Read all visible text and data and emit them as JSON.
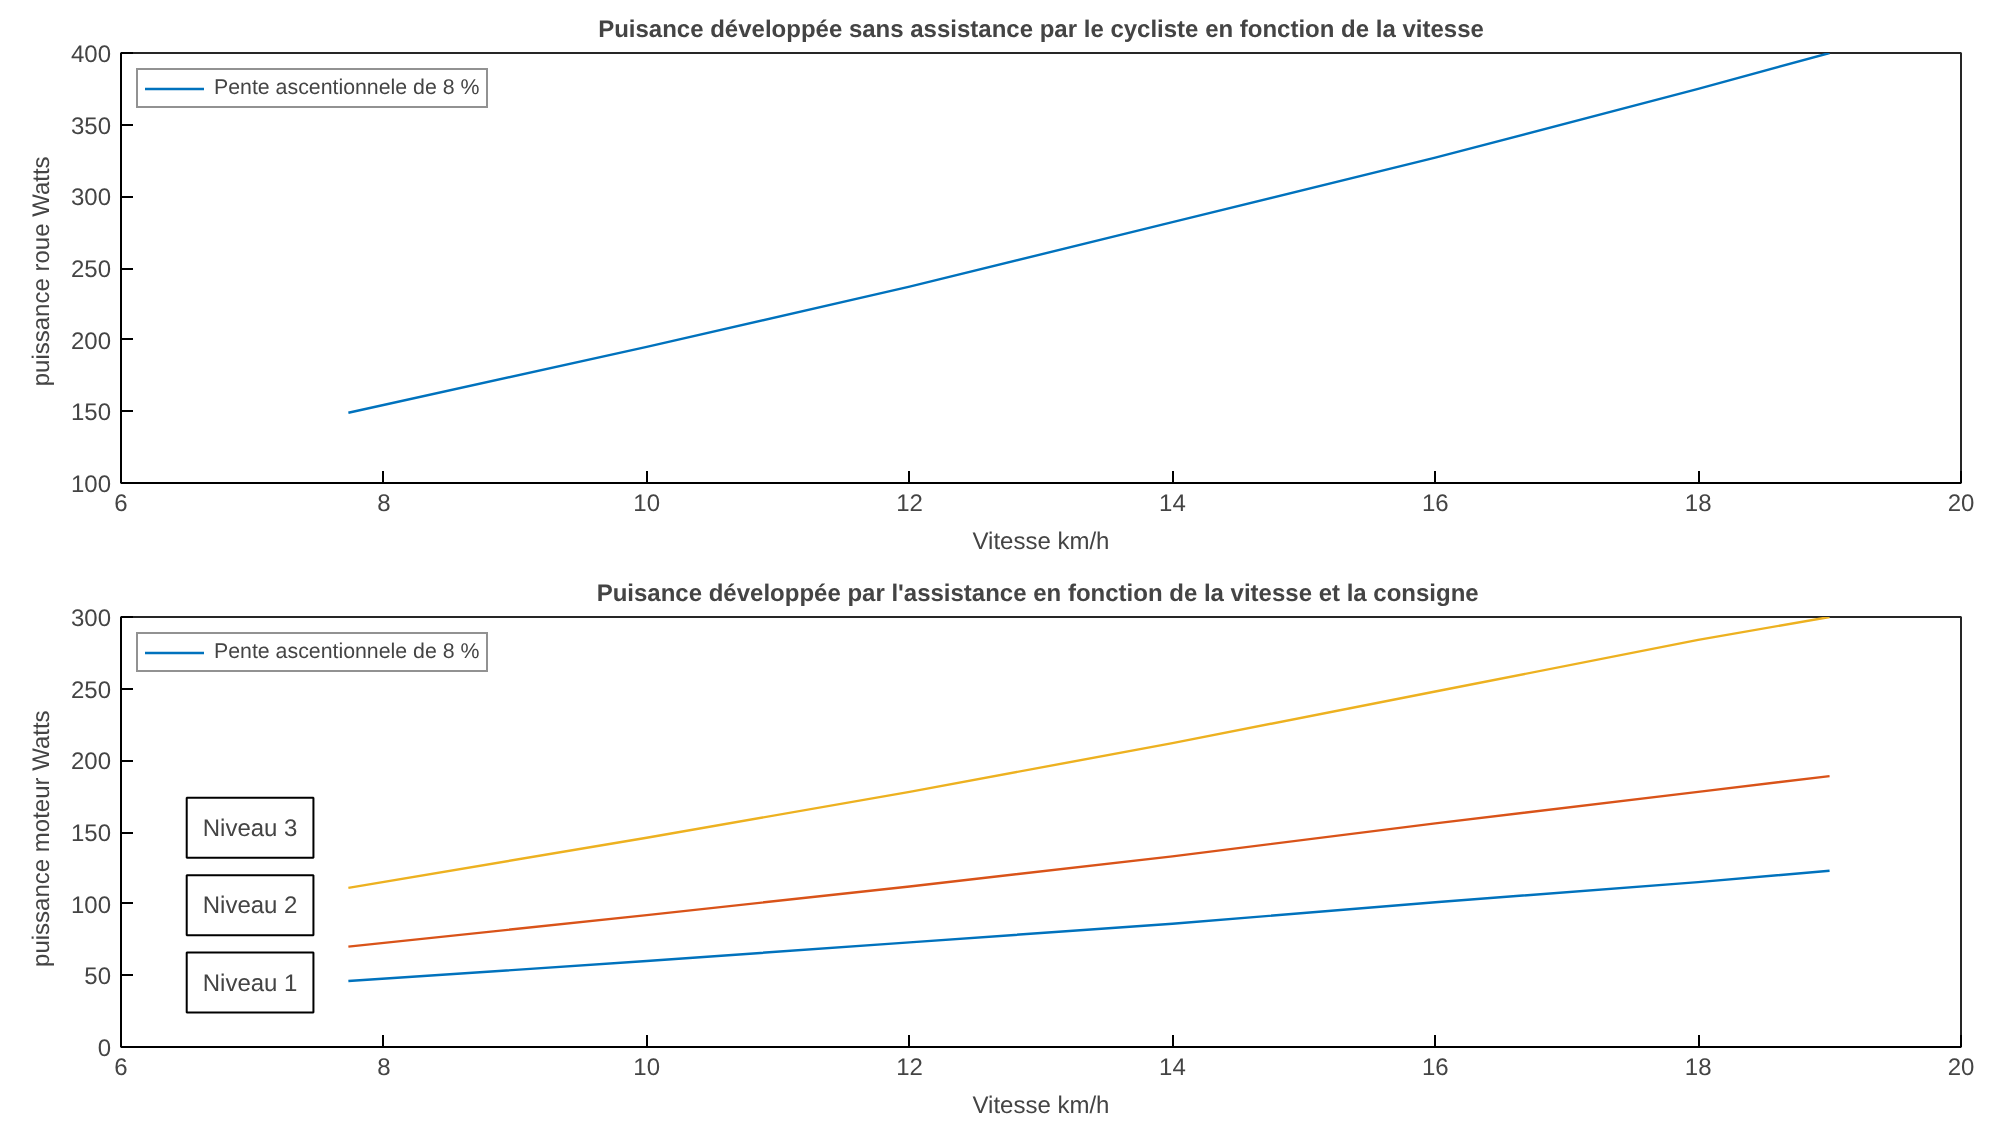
{
  "chart_data": [
    {
      "type": "line",
      "title": "Puisance développée sans assistance par le cycliste en fonction de la vitesse",
      "xlabel": "Vitesse km/h",
      "ylabel": "puissance roue  Watts",
      "xlim": [
        6,
        20
      ],
      "ylim": [
        100,
        400
      ],
      "xticks": [
        6,
        8,
        10,
        12,
        14,
        16,
        18,
        20
      ],
      "yticks": [
        100,
        150,
        200,
        250,
        300,
        350,
        400
      ],
      "legend": "top left",
      "grid": false,
      "marker": "none",
      "line_style": "solid",
      "series": [
        {
          "name": "Pente ascentionnele de 8 %",
          "color": "#0072bd",
          "x": [
            7.73,
            10,
            12,
            14,
            16,
            18,
            19
          ],
          "values": [
            149,
            195,
            237,
            282,
            327,
            375,
            400
          ]
        }
      ]
    },
    {
      "type": "line",
      "title": "Puisance développée par l'assistance en fonction de la vitesse et  la consigne",
      "xlabel": "Vitesse km/h",
      "ylabel": "puissance moteur   Watts",
      "xlim": [
        6,
        20
      ],
      "ylim": [
        0,
        300
      ],
      "xticks": [
        6,
        8,
        10,
        12,
        14,
        16,
        18,
        20
      ],
      "yticks": [
        0,
        50,
        100,
        150,
        200,
        250,
        300
      ],
      "legend": "top left",
      "grid": false,
      "marker": "none",
      "line_style": "solid",
      "annotations": [
        "Niveau 3",
        "Niveau 2",
        "Niveau 1"
      ],
      "series": [
        {
          "name": "Pente ascentionnele de 8 %",
          "color": "#0072bd",
          "x": [
            7.73,
            10,
            12,
            14,
            16,
            18,
            19
          ],
          "values": [
            46,
            60,
            73,
            86,
            101,
            115,
            123
          ]
        },
        {
          "color": "#d95319",
          "x": [
            7.73,
            10,
            12,
            14,
            16,
            18,
            19
          ],
          "values": [
            70,
            92,
            112,
            133,
            156,
            178,
            189
          ]
        },
        {
          "color": "#edb120",
          "x": [
            7.73,
            10,
            12,
            14,
            16,
            18,
            19
          ],
          "values": [
            111,
            146,
            178,
            212,
            248,
            284,
            300
          ]
        }
      ]
    }
  ]
}
